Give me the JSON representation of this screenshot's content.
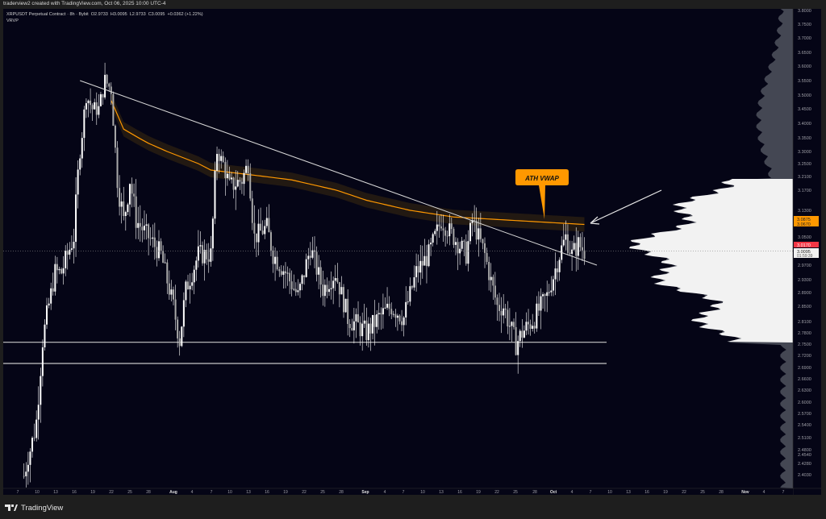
{
  "header": {
    "attribution": "traderview2 created with TradingView.com, Oct 06, 2025 10:00 UTC-4",
    "symbol_line": "XRPUSDT Perpetual Contract · 8h · Bybit  O2.9733  H3.0095  L2.9733  C3.0095  +0.0362 (+1.22%)",
    "indicator": "VRVP"
  },
  "annotation": {
    "label": "ATH VWAP",
    "color": "#ff9800"
  },
  "footer": {
    "brand": "TradingView",
    "logo_icon": "tradingview-logo-icon"
  },
  "colors": {
    "background": "#050516",
    "candle": "#ffffff",
    "vwap": "#ff9800",
    "last_price": "#f23645",
    "volume_profile": "#f2f2f2"
  },
  "chart_data": {
    "type": "candlestick",
    "symbol": "XRPUSDT",
    "interval": "8h",
    "price_axis": {
      "ticks": [
        "3.8000",
        "3.7500",
        "3.7000",
        "3.6500",
        "3.6000",
        "3.5500",
        "3.5000",
        "3.4500",
        "3.4000",
        "3.3500",
        "3.3000",
        "3.2500",
        "3.2100",
        "3.1700",
        "3.1300",
        "3.0500",
        "2.9700",
        "2.9300",
        "2.8900",
        "2.8500",
        "2.8100",
        "2.7800",
        "2.7500",
        "2.7200",
        "2.6900",
        "2.6600",
        "2.6300",
        "2.6000",
        "2.5700",
        "2.5400",
        "2.5100",
        "2.4800",
        "2.4540",
        "2.4280",
        "2.4030"
      ],
      "tags": [
        {
          "value": "3.0875",
          "color": "#ff9800"
        },
        {
          "value": "3.0670",
          "color": "#ff9800"
        },
        {
          "value": "3.0170",
          "color": "#f23645"
        },
        {
          "value": "3.0095",
          "sub": "01:59:39",
          "color": "#f2f2f2"
        }
      ]
    },
    "time_axis": {
      "ticks": [
        "7",
        "10",
        "13",
        "16",
        "19",
        "22",
        "25",
        "28",
        "Aug",
        "4",
        "7",
        "10",
        "13",
        "16",
        "19",
        "22",
        "25",
        "28",
        "Sep",
        "4",
        "7",
        "10",
        "13",
        "16",
        "19",
        "22",
        "25",
        "28",
        "Oct",
        "4",
        "7",
        "10",
        "13",
        "16",
        "19",
        "22",
        "25",
        "28",
        "Nov",
        "4",
        "7"
      ]
    },
    "price_waypoints": [
      [
        "Jul 8",
        2.4
      ],
      [
        "Jul 10",
        2.55
      ],
      [
        "Jul 11",
        2.76
      ],
      [
        "Jul 13",
        2.95
      ],
      [
        "Jul 14",
        2.95
      ],
      [
        "Jul 15",
        3.0
      ],
      [
        "Jul 16",
        3.05
      ],
      [
        "Jul 17",
        3.3
      ],
      [
        "Jul 18",
        3.5
      ],
      [
        "Jul 19",
        3.45
      ],
      [
        "Jul 20",
        3.45
      ],
      [
        "Jul 21",
        3.55
      ],
      [
        "Jul 22",
        3.52
      ],
      [
        "Jul 23",
        3.2
      ],
      [
        "Jul 24",
        3.1
      ],
      [
        "Jul 25",
        3.2
      ],
      [
        "Jul 26",
        3.1
      ],
      [
        "Jul 28",
        3.05
      ],
      [
        "Jul 30",
        3.0
      ],
      [
        "Aug 1",
        2.85
      ],
      [
        "Aug 2",
        2.76
      ],
      [
        "Aug 3",
        2.9
      ],
      [
        "Aug 5",
        3.0
      ],
      [
        "Aug 7",
        3.0
      ],
      [
        "Aug 8",
        3.3
      ],
      [
        "Aug 9",
        3.25
      ],
      [
        "Aug 10",
        3.18
      ],
      [
        "Aug 12",
        3.2
      ],
      [
        "Aug 13",
        3.25
      ],
      [
        "Aug 14",
        3.05
      ],
      [
        "Aug 16",
        3.08
      ],
      [
        "Aug 17",
        3.0
      ],
      [
        "Aug 19",
        2.95
      ],
      [
        "Aug 21",
        2.88
      ],
      [
        "Aug 23",
        3.02
      ],
      [
        "Aug 25",
        2.9
      ],
      [
        "Aug 27",
        2.95
      ],
      [
        "Aug 29",
        2.82
      ],
      [
        "Sep 1",
        2.78
      ],
      [
        "Sep 3",
        2.82
      ],
      [
        "Sep 5",
        2.85
      ],
      [
        "Sep 7",
        2.82
      ],
      [
        "Sep 9",
        2.95
      ],
      [
        "Sep 11",
        3.0
      ],
      [
        "Sep 13",
        3.1
      ],
      [
        "Sep 15",
        3.05
      ],
      [
        "Sep 17",
        3.0
      ],
      [
        "Sep 18",
        3.1
      ],
      [
        "Sep 20",
        3.0
      ],
      [
        "Sep 22",
        2.85
      ],
      [
        "Sep 23",
        2.85
      ],
      [
        "Sep 25",
        2.75
      ],
      [
        "Sep 26",
        2.78
      ],
      [
        "Sep 28",
        2.82
      ],
      [
        "Sep 30",
        2.88
      ],
      [
        "Oct 2",
        3.0
      ],
      [
        "Oct 3",
        3.05
      ],
      [
        "Oct 4",
        3.0
      ],
      [
        "Oct 5",
        3.03
      ],
      [
        "Oct 6",
        3.0095
      ]
    ],
    "vwap_waypoints": [
      [
        "Jul 22",
        3.48
      ],
      [
        "Jul 24",
        3.38
      ],
      [
        "Jul 28",
        3.33
      ],
      [
        "Aug 2",
        3.28
      ],
      [
        "Aug 7",
        3.23
      ],
      [
        "Aug 20",
        3.2
      ],
      [
        "Sep 1",
        3.15
      ],
      [
        "Sep 15",
        3.11
      ],
      [
        "Oct 6",
        3.0875
      ]
    ],
    "trendline": [
      [
        "Jul 17",
        3.55
      ],
      [
        "Oct 8",
        2.97
      ]
    ],
    "horizontal_levels": [
      2.755,
      2.7
    ]
  }
}
